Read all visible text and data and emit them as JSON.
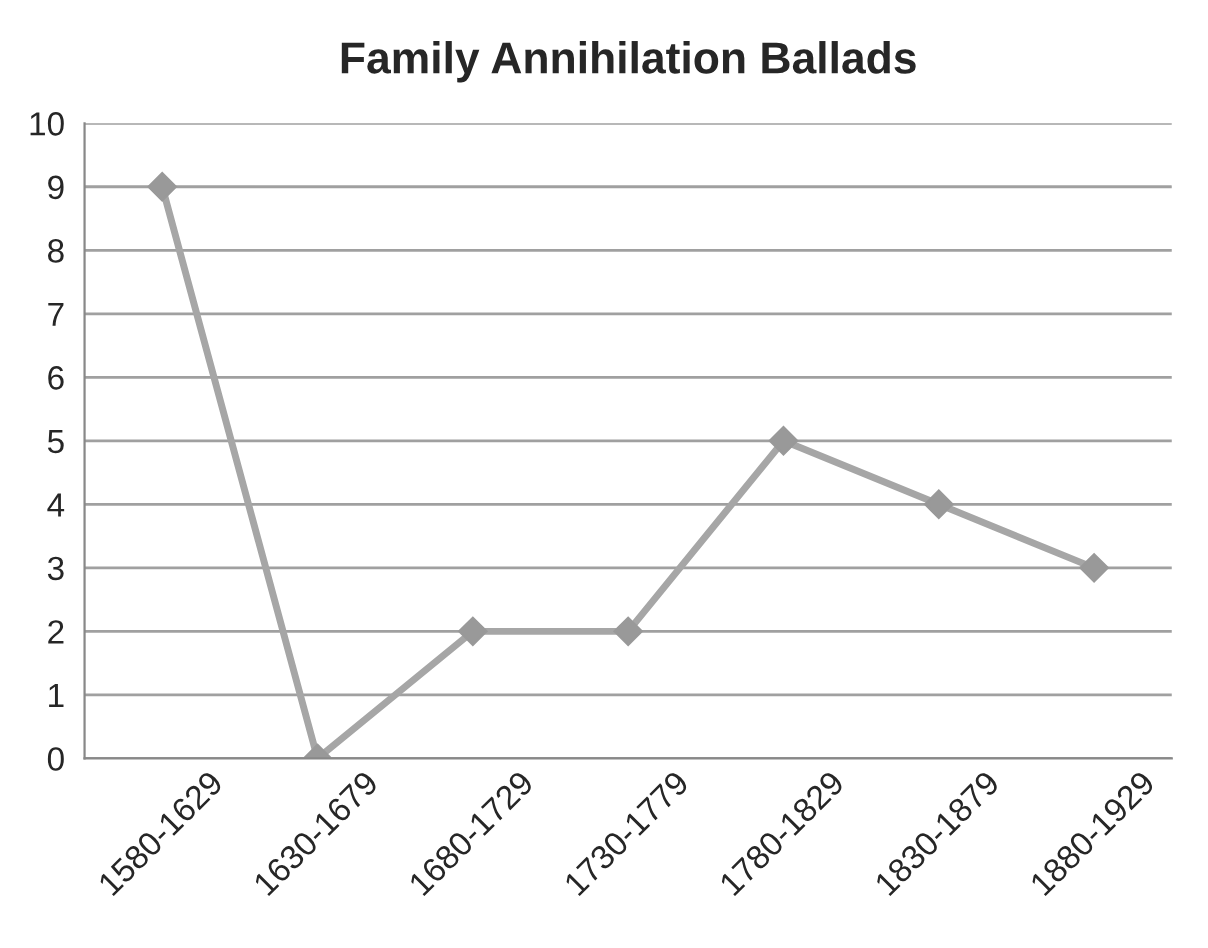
{
  "chart_data": {
    "type": "line",
    "title": "Family Annihilation Ballads",
    "categories": [
      "1580-1629",
      "1630-1679",
      "1680-1729",
      "1730-1779",
      "1780-1829",
      "1830-1879",
      "1880-1929"
    ],
    "series": [
      {
        "color": "#a6a6a6",
        "values": [
          9,
          0,
          2,
          2,
          5,
          4,
          3
        ]
      }
    ],
    "ylim": [
      0,
      10
    ],
    "yticks": [
      0,
      1,
      2,
      3,
      4,
      5,
      6,
      7,
      8,
      9,
      10
    ],
    "grid": "y",
    "marker": "diamond",
    "line_style": "solid"
  }
}
